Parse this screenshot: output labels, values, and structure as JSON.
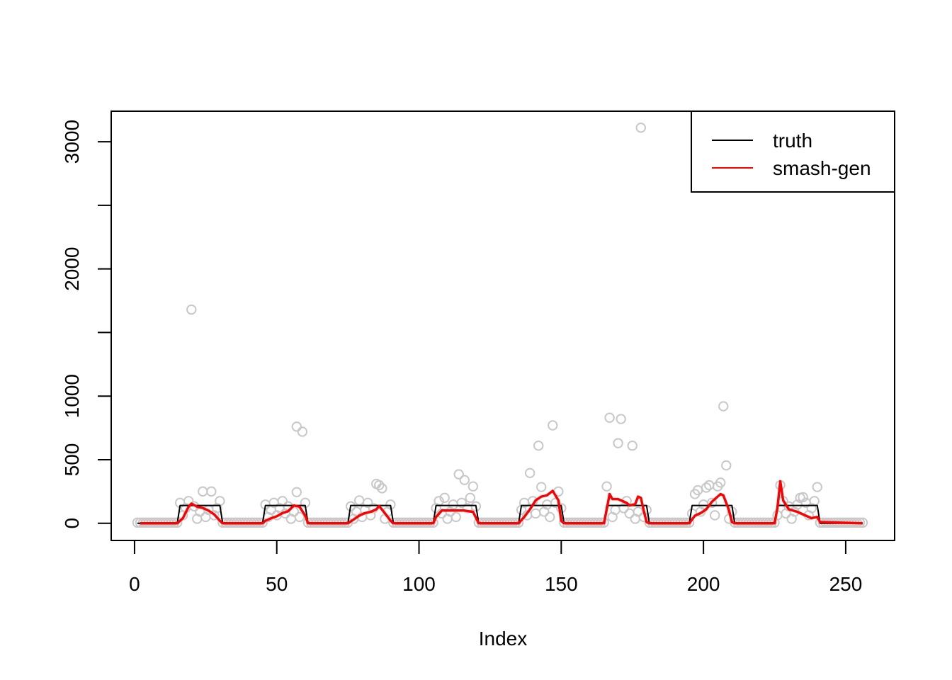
{
  "chart_data": {
    "type": "scatter",
    "title": "",
    "xlabel": "Index",
    "ylabel": "",
    "xlim": [
      -8.2,
      267.2
    ],
    "ylim": [
      -135,
      3240
    ],
    "x_ticks": [
      0,
      50,
      100,
      150,
      200,
      250
    ],
    "y_ticks": [
      0,
      500,
      1000,
      2000,
      3000
    ],
    "y_minor_ticks": [
      1500,
      2500
    ],
    "grid": false,
    "legend": {
      "position": "top-right",
      "entries": [
        "truth",
        "smash-gen"
      ]
    },
    "observations": {
      "color": "#c8c8c8",
      "n": 256,
      "base_level": 5,
      "outliers": [
        {
          "x": 20,
          "y": 1680
        },
        {
          "x": 24,
          "y": 250
        },
        {
          "x": 27,
          "y": 250
        },
        {
          "x": 57,
          "y": 245
        },
        {
          "x": 57,
          "y": 760
        },
        {
          "x": 59,
          "y": 720
        },
        {
          "x": 79,
          "y": 180
        },
        {
          "x": 85,
          "y": 310
        },
        {
          "x": 86,
          "y": 300
        },
        {
          "x": 87,
          "y": 275
        },
        {
          "x": 109,
          "y": 200
        },
        {
          "x": 114,
          "y": 385
        },
        {
          "x": 116,
          "y": 340
        },
        {
          "x": 118,
          "y": 200
        },
        {
          "x": 119,
          "y": 290
        },
        {
          "x": 139,
          "y": 395
        },
        {
          "x": 142,
          "y": 610
        },
        {
          "x": 143,
          "y": 285
        },
        {
          "x": 147,
          "y": 770
        },
        {
          "x": 149,
          "y": 250
        },
        {
          "x": 166,
          "y": 290
        },
        {
          "x": 167,
          "y": 830
        },
        {
          "x": 170,
          "y": 630
        },
        {
          "x": 171,
          "y": 820
        },
        {
          "x": 175,
          "y": 610
        },
        {
          "x": 178,
          "y": 3110
        },
        {
          "x": 197,
          "y": 230
        },
        {
          "x": 198,
          "y": 260
        },
        {
          "x": 201,
          "y": 280
        },
        {
          "x": 202,
          "y": 300
        },
        {
          "x": 205,
          "y": 290
        },
        {
          "x": 206,
          "y": 320
        },
        {
          "x": 207,
          "y": 920
        },
        {
          "x": 208,
          "y": 455
        },
        {
          "x": 227,
          "y": 300
        },
        {
          "x": 234,
          "y": 200
        },
        {
          "x": 235,
          "y": 205
        },
        {
          "x": 240,
          "y": 285
        }
      ]
    },
    "series": [
      {
        "name": "truth",
        "color": "#000000",
        "points": [
          [
            1,
            0
          ],
          [
            15,
            0
          ],
          [
            16,
            140
          ],
          [
            30,
            140
          ],
          [
            31,
            0
          ],
          [
            45,
            0
          ],
          [
            46,
            140
          ],
          [
            60,
            140
          ],
          [
            61,
            0
          ],
          [
            75,
            0
          ],
          [
            76,
            140
          ],
          [
            90,
            140
          ],
          [
            91,
            0
          ],
          [
            105,
            0
          ],
          [
            106,
            140
          ],
          [
            120,
            140
          ],
          [
            121,
            0
          ],
          [
            135,
            0
          ],
          [
            136,
            140
          ],
          [
            150,
            140
          ],
          [
            151,
            0
          ],
          [
            165,
            0
          ],
          [
            166,
            140
          ],
          [
            180,
            140
          ],
          [
            181,
            0
          ],
          [
            195,
            0
          ],
          [
            196,
            140
          ],
          [
            210,
            140
          ],
          [
            211,
            0
          ],
          [
            225,
            0
          ],
          [
            226,
            140
          ],
          [
            240,
            140
          ],
          [
            241,
            0
          ],
          [
            256,
            0
          ]
        ]
      },
      {
        "name": "smash-gen",
        "color": "#ff0000",
        "points": [
          [
            2,
            0
          ],
          [
            15,
            0
          ],
          [
            17,
            40
          ],
          [
            19,
            130
          ],
          [
            20,
            155
          ],
          [
            22,
            130
          ],
          [
            24,
            120
          ],
          [
            26,
            100
          ],
          [
            28,
            70
          ],
          [
            30,
            20
          ],
          [
            31,
            0
          ],
          [
            45,
            0
          ],
          [
            46,
            20
          ],
          [
            48,
            40
          ],
          [
            50,
            55
          ],
          [
            52,
            80
          ],
          [
            54,
            95
          ],
          [
            56,
            140
          ],
          [
            58,
            130
          ],
          [
            60,
            60
          ],
          [
            61,
            0
          ],
          [
            75,
            0
          ],
          [
            77,
            30
          ],
          [
            79,
            60
          ],
          [
            81,
            80
          ],
          [
            83,
            90
          ],
          [
            85,
            110
          ],
          [
            86,
            135
          ],
          [
            88,
            80
          ],
          [
            90,
            20
          ],
          [
            91,
            0
          ],
          [
            105,
            0
          ],
          [
            106,
            50
          ],
          [
            108,
            100
          ],
          [
            112,
            100
          ],
          [
            116,
            100
          ],
          [
            119,
            90
          ],
          [
            121,
            0
          ],
          [
            135,
            0
          ],
          [
            137,
            50
          ],
          [
            139,
            110
          ],
          [
            141,
            180
          ],
          [
            143,
            210
          ],
          [
            145,
            220
          ],
          [
            147,
            255
          ],
          [
            149,
            180
          ],
          [
            150,
            20
          ],
          [
            151,
            0
          ],
          [
            165,
            0
          ],
          [
            166,
            110
          ],
          [
            167,
            230
          ],
          [
            168,
            190
          ],
          [
            170,
            190
          ],
          [
            173,
            160
          ],
          [
            174,
            140
          ],
          [
            176,
            150
          ],
          [
            177,
            210
          ],
          [
            178,
            200
          ],
          [
            179,
            100
          ],
          [
            180,
            10
          ],
          [
            181,
            0
          ],
          [
            195,
            0
          ],
          [
            197,
            60
          ],
          [
            199,
            80
          ],
          [
            201,
            110
          ],
          [
            203,
            170
          ],
          [
            206,
            230
          ],
          [
            207,
            220
          ],
          [
            209,
            100
          ],
          [
            210,
            10
          ],
          [
            211,
            0
          ],
          [
            225,
            0
          ],
          [
            226,
            120
          ],
          [
            227,
            330
          ],
          [
            228,
            180
          ],
          [
            230,
            110
          ],
          [
            233,
            90
          ],
          [
            236,
            60
          ],
          [
            238,
            40
          ],
          [
            240,
            50
          ],
          [
            241,
            10
          ],
          [
            256,
            0
          ]
        ]
      }
    ]
  }
}
